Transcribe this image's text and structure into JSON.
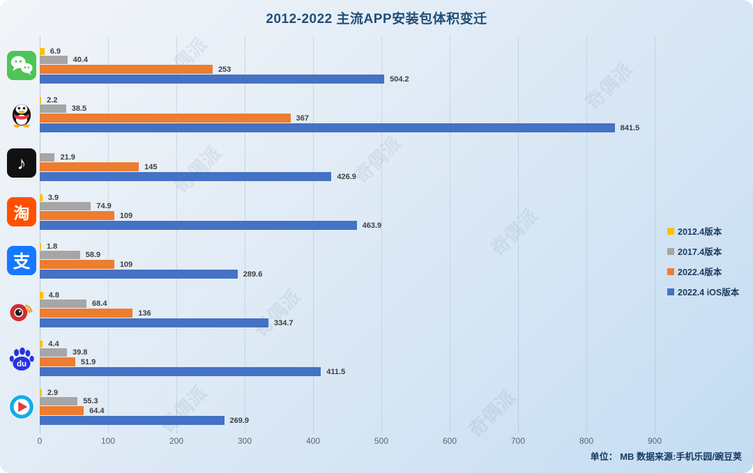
{
  "title": "2012-2022 主流APP安装包体积变迁",
  "footer": "单位： MB  数据来源:手机乐园/豌豆荚",
  "watermark_text": "奇偶派",
  "chart_data": {
    "type": "bar",
    "orientation": "horizontal",
    "title": "2012-2022 主流APP安装包体积变迁",
    "unit": "MB",
    "xlabel": "",
    "ylabel": "",
    "xlim": [
      0,
      1000
    ],
    "x_ticks": [
      0,
      100,
      200,
      300,
      400,
      500,
      600,
      700,
      800,
      900
    ],
    "grid": true,
    "legend_position": "right",
    "categories": [
      "微信",
      "QQ",
      "抖音",
      "淘宝",
      "支付宝",
      "微博",
      "百度",
      "优酷"
    ],
    "category_icons": [
      "wechat-icon",
      "qq-icon",
      "douyin-icon",
      "taobao-icon",
      "alipay-icon",
      "weibo-icon",
      "baidu-icon",
      "youku-icon"
    ],
    "series": [
      {
        "name": "2012.4版本",
        "color": "#FFC000",
        "values": [
          6.9,
          2.2,
          null,
          3.9,
          1.8,
          4.8,
          4.4,
          2.9
        ]
      },
      {
        "name": "2017.4版本",
        "color": "#A6A6A6",
        "values": [
          40.4,
          38.5,
          21.9,
          74.9,
          58.9,
          68.4,
          39.8,
          55.3
        ]
      },
      {
        "name": "2022.4版本",
        "color": "#ED7D31",
        "values": [
          253,
          367,
          145,
          109,
          109,
          136,
          51.9,
          64.4
        ]
      },
      {
        "name": "2022.4 iOS版本",
        "color": "#4472C4",
        "values": [
          504.2,
          841.5,
          426.9,
          463.9,
          289.6,
          334.7,
          411.5,
          269.9
        ]
      }
    ]
  }
}
